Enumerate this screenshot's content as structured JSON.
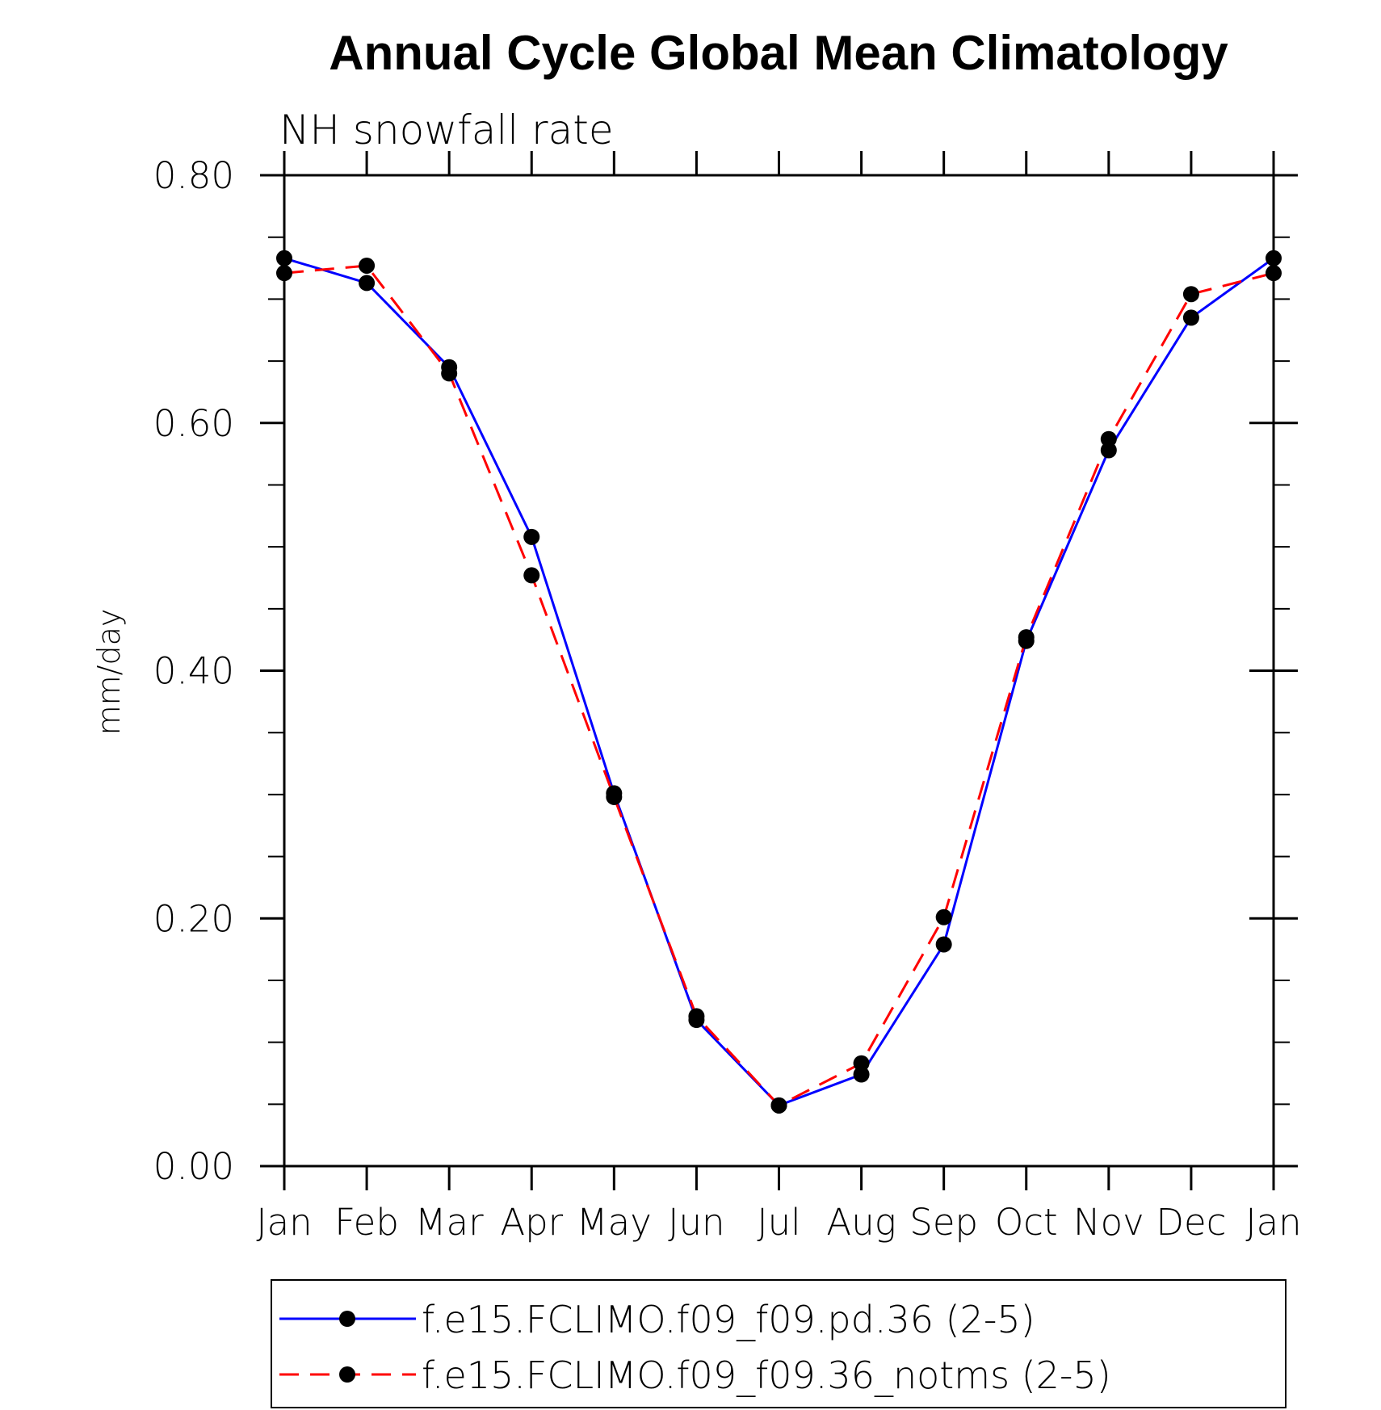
{
  "chart_data": {
    "type": "line",
    "title": "Annual Cycle Global Mean Climatology",
    "subtitle": "NH snowfall rate",
    "xlabel": "",
    "ylabel": "mm/day",
    "categories": [
      "Jan",
      "Feb",
      "Mar",
      "Apr",
      "May",
      "Jun",
      "Jul",
      "Aug",
      "Sep",
      "Oct",
      "Nov",
      "Dec",
      "Jan"
    ],
    "ylim": [
      0,
      0.8
    ],
    "yticks": [
      "0.00",
      "0.20",
      "0.40",
      "0.60",
      "0.80"
    ],
    "grid": false,
    "legend_position": "bottom",
    "series": [
      {
        "name": "f.e15.FCLIMO.f09_f09.pd.36 (2-5)",
        "color": "#0000ff",
        "dash": "solid",
        "values": [
          0.733,
          0.713,
          0.645,
          0.508,
          0.301,
          0.118,
          0.049,
          0.074,
          0.179,
          0.424,
          0.578,
          0.685,
          0.733
        ]
      },
      {
        "name": "f.e15.FCLIMO.f09_f09.36_notms (2-5)",
        "color": "#ff0000",
        "dash": "dashed",
        "values": [
          0.721,
          0.727,
          0.64,
          0.477,
          0.298,
          0.121,
          0.049,
          0.083,
          0.201,
          0.427,
          0.587,
          0.704,
          0.721
        ]
      }
    ]
  }
}
